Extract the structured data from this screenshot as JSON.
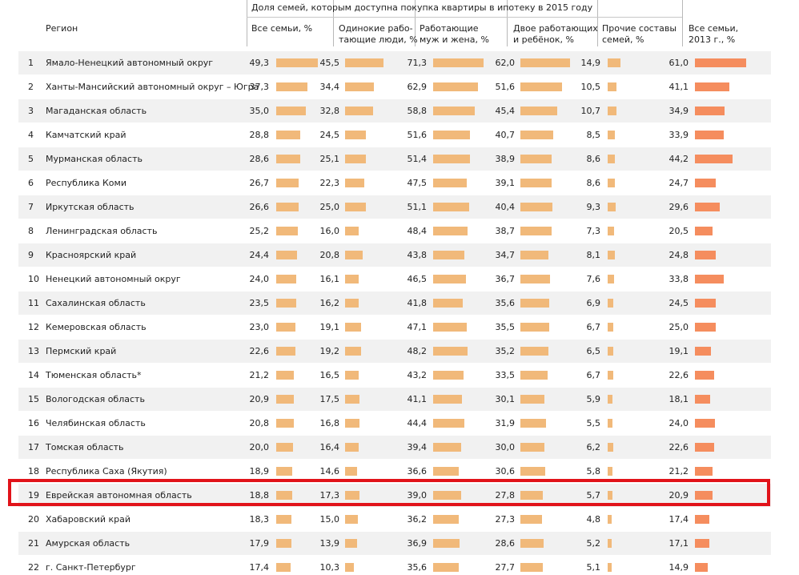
{
  "header": {
    "region_label": "Регион",
    "group_title": "Доля семей, которым доступна покупка квартиры в ипотеку в 2015 году",
    "columns": [
      "Все семьи, %",
      "Одинокие рабо-\nтающие люди, %",
      "Работающие\nмуж и жена, %",
      "Двое работающих\nи ребёнок, %",
      "Прочие составы\nсемей, %",
      "Все семьи,\n2013 г., %"
    ]
  },
  "colors": {
    "bar": "#f1b97a",
    "bar_2013": "#f58d5e",
    "highlight": "#e1131a",
    "row_shade": "#f1f1f1"
  },
  "highlighted_row": 19,
  "chart_data": {
    "type": "table",
    "title": "Доля семей, которым доступна покупка квартиры в ипотеку в 2015 году",
    "columns": [
      "Все семьи, %",
      "Одинокие работающие люди, %",
      "Работающие муж и жена, %",
      "Двое работающих и ребёнок, %",
      "Прочие составы семей, %",
      "Все семьи, 2013 г., %"
    ],
    "rows": [
      {
        "n": "1",
        "region": "Ямало-Ненецкий автономный округ",
        "values": [
          "49,3",
          "45,5",
          "71,3",
          "62,0",
          "14,9",
          "61,0"
        ]
      },
      {
        "n": "2",
        "region": "Ханты-Мансийский автономный округ – Югра",
        "values": [
          "37,3",
          "34,4",
          "62,9",
          "51,6",
          "10,5",
          "41,1"
        ]
      },
      {
        "n": "3",
        "region": "Магаданская область",
        "values": [
          "35,0",
          "32,8",
          "58,8",
          "45,4",
          "10,7",
          "34,9"
        ]
      },
      {
        "n": "4",
        "region": "Камчатский край",
        "values": [
          "28,8",
          "24,5",
          "51,6",
          "40,7",
          "8,5",
          "33,9"
        ]
      },
      {
        "n": "5",
        "region": "Мурманская область",
        "values": [
          "28,6",
          "25,1",
          "51,4",
          "38,9",
          "8,6",
          "44,2"
        ]
      },
      {
        "n": "6",
        "region": "Республика Коми",
        "values": [
          "26,7",
          "22,3",
          "47,5",
          "39,1",
          "8,6",
          "24,7"
        ]
      },
      {
        "n": "7",
        "region": "Иркутская область",
        "values": [
          "26,6",
          "25,0",
          "51,1",
          "40,4",
          "9,3",
          "29,6"
        ]
      },
      {
        "n": "8",
        "region": "Ленинградская область",
        "values": [
          "25,2",
          "16,0",
          "48,4",
          "38,7",
          "7,3",
          "20,5"
        ]
      },
      {
        "n": "9",
        "region": "Красноярский край",
        "values": [
          "24,4",
          "20,8",
          "43,8",
          "34,7",
          "8,1",
          "24,8"
        ]
      },
      {
        "n": "10",
        "region": "Ненецкий автономный округ",
        "values": [
          "24,0",
          "16,1",
          "46,5",
          "36,7",
          "7,6",
          "33,8"
        ]
      },
      {
        "n": "11",
        "region": "Сахалинская область",
        "values": [
          "23,5",
          "16,2",
          "41,8",
          "35,6",
          "6,9",
          "24,5"
        ]
      },
      {
        "n": "12",
        "region": "Кемеровская область",
        "values": [
          "23,0",
          "19,1",
          "47,1",
          "35,5",
          "6,7",
          "25,0"
        ]
      },
      {
        "n": "13",
        "region": "Пермский край",
        "values": [
          "22,6",
          "19,2",
          "48,2",
          "35,2",
          "6,5",
          "19,1"
        ]
      },
      {
        "n": "14",
        "region": "Тюменская область*",
        "values": [
          "21,2",
          "16,5",
          "43,2",
          "33,5",
          "6,7",
          "22,6"
        ]
      },
      {
        "n": "15",
        "region": "Вологодская область",
        "values": [
          "20,9",
          "17,5",
          "41,1",
          "30,1",
          "5,9",
          "18,1"
        ]
      },
      {
        "n": "16",
        "region": "Челябинская область",
        "values": [
          "20,8",
          "16,8",
          "44,4",
          "31,9",
          "5,5",
          "24,0"
        ]
      },
      {
        "n": "17",
        "region": "Томская область",
        "values": [
          "20,0",
          "16,4",
          "39,4",
          "30,0",
          "6,2",
          "22,6"
        ]
      },
      {
        "n": "18",
        "region": "Республика Саха (Якутия)",
        "values": [
          "18,9",
          "14,6",
          "36,6",
          "30,6",
          "5,8",
          "21,2"
        ]
      },
      {
        "n": "19",
        "region": "Еврейская автономная область",
        "values": [
          "18,8",
          "17,3",
          "39,0",
          "27,8",
          "5,7",
          "20,9"
        ]
      },
      {
        "n": "20",
        "region": "Хабаровский край",
        "values": [
          "18,3",
          "15,0",
          "36,2",
          "27,3",
          "4,8",
          "17,4"
        ]
      },
      {
        "n": "21",
        "region": "Амурская область",
        "values": [
          "17,9",
          "13,9",
          "36,9",
          "28,6",
          "5,2",
          "17,1"
        ]
      },
      {
        "n": "22",
        "region": "г. Санкт-Петербург",
        "values": [
          "17,4",
          "10,3",
          "35,6",
          "27,7",
          "5,1",
          "14,9"
        ]
      }
    ]
  }
}
